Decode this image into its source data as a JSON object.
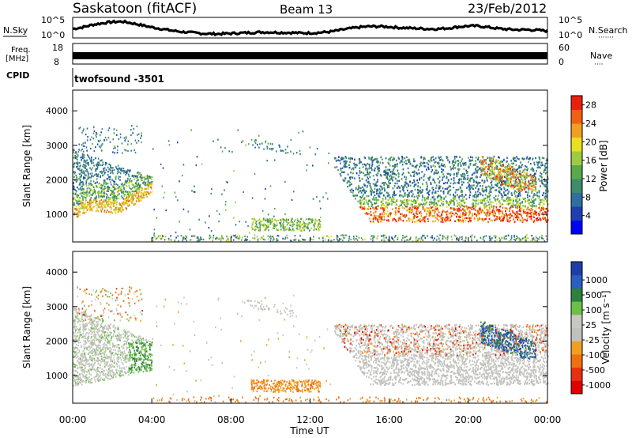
{
  "header": {
    "station": "Saskatoon (fitACF)",
    "beam": "Beam 13",
    "date": "23/Feb/2012"
  },
  "noise_panel": {
    "left_label": "N.Sky",
    "right_label": "N.Search",
    "right_dots": "·······",
    "tick_top": "10^5",
    "tick_bottom": "10^0"
  },
  "freq_panel": {
    "left_label_1": "Freq.",
    "left_label_2": "[MHz]",
    "left_tick_top": "18",
    "left_tick_bottom": "8",
    "right_label": "Nave",
    "right_dots": "····",
    "right_tick_top": "60",
    "right_tick_bottom": "0"
  },
  "cpid": {
    "label": "CPID",
    "value": "twofsound -3501"
  },
  "colors": {
    "power_scale": [
      "#0000ff",
      "#1f3fb0",
      "#2e6fa0",
      "#3e8c6a",
      "#5aa84a",
      "#9dcc40",
      "#e8e020",
      "#f0a020",
      "#f06010",
      "#e82010"
    ],
    "velocity_scale": [
      "#1e3fa8",
      "#2a5fc0",
      "#2f7f3f",
      "#6cc04a",
      "#c8c8c0",
      "#c0c0bc",
      "#f0a020",
      "#f07010",
      "#e83010",
      "#e00000"
    ]
  },
  "chart_data": [
    {
      "type": "line",
      "name": "noise",
      "series": [
        {
          "name": "N.Sky",
          "y": [
            2.2,
            2.6,
            3.2,
            3.6,
            3.9,
            4.0,
            3.6,
            3.1,
            2.6,
            2.2,
            1.8,
            1.5,
            1.3,
            1.1,
            1.0,
            1.0,
            1.1,
            1.2,
            1.3,
            1.4,
            1.4,
            1.3,
            1.3,
            1.2,
            1.2,
            1.3,
            1.5,
            1.9,
            2.3,
            2.6,
            2.8,
            2.8,
            2.7,
            2.5,
            2.4,
            2.3,
            2.2,
            2.2,
            2.4,
            2.7,
            2.9,
            2.9,
            2.6,
            2.3,
            2.1,
            2.0,
            2.0,
            1.9,
            1.7
          ]
        }
      ],
      "yscale": "log",
      "ylim": [
        1,
        100000
      ]
    },
    {
      "type": "area",
      "name": "frequency",
      "x": [
        "00:00",
        "24:00"
      ],
      "freq_band_mhz": [
        10,
        12
      ],
      "ylim": [
        8,
        18
      ]
    },
    {
      "type": "heatmap",
      "name": "power",
      "xlabel": "",
      "ylabel": "Slant Range [km]",
      "x_ticks": [
        "00:00",
        "04:00",
        "08:00",
        "12:00",
        "16:00",
        "20:00",
        "00:00"
      ],
      "y_ticks": [
        1000,
        2000,
        3000,
        4000
      ],
      "ylim": [
        200,
        4600
      ],
      "colorbar": {
        "label": "Power [dB]",
        "ticks": [
          4,
          8,
          12,
          16,
          20,
          24,
          28
        ],
        "range": [
          0,
          30
        ]
      }
    },
    {
      "type": "heatmap",
      "name": "velocity",
      "xlabel": "Time UT",
      "ylabel": "Slant Range [km]",
      "x_ticks": [
        "00:00",
        "04:00",
        "08:00",
        "12:00",
        "16:00",
        "20:00",
        "00:00"
      ],
      "y_ticks": [
        1000,
        2000,
        3000,
        4000
      ],
      "ylim": [
        200,
        4600
      ],
      "colorbar": {
        "label": "Velocity [m s⁻¹]",
        "ticks": [
          "1000",
          "500",
          "100",
          "25",
          "-25",
          "-100",
          "-500",
          "-1000"
        ]
      }
    }
  ]
}
